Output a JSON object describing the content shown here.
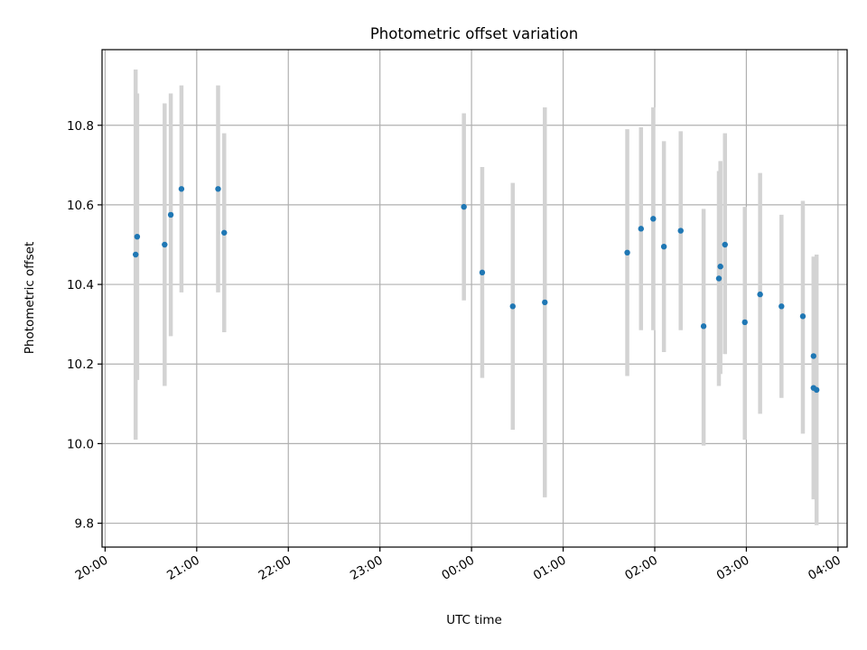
{
  "chart_data": {
    "type": "scatter",
    "title": "Photometric offset variation",
    "xlabel": "UTC time",
    "ylabel": "Photometric offset",
    "x_ticks": [
      "20:00",
      "21:00",
      "22:00",
      "23:00",
      "00:00",
      "01:00",
      "02:00",
      "03:00",
      "04:00"
    ],
    "y_ticks": [
      "9.8",
      "10.0",
      "10.2",
      "10.4",
      "10.6",
      "10.8"
    ],
    "xlim": [
      "19:58",
      "04:06"
    ],
    "ylim": [
      9.74,
      10.99
    ],
    "grid": true,
    "colors": {
      "points": "#1f77b4",
      "errorbars": "#d3d3d3",
      "grid": "#b0b0b0"
    },
    "series": [
      {
        "values": [
          {
            "x": "20:20",
            "y": 10.475,
            "y_lower": 10.01,
            "y_upper": 10.94
          },
          {
            "x": "20:21",
            "y": 10.52,
            "y_lower": 10.16,
            "y_upper": 10.88
          },
          {
            "x": "20:39",
            "y": 10.5,
            "y_lower": 10.145,
            "y_upper": 10.855
          },
          {
            "x": "20:43",
            "y": 10.575,
            "y_lower": 10.27,
            "y_upper": 10.88
          },
          {
            "x": "20:50",
            "y": 10.64,
            "y_lower": 10.38,
            "y_upper": 10.9
          },
          {
            "x": "21:14",
            "y": 10.64,
            "y_lower": 10.38,
            "y_upper": 10.9
          },
          {
            "x": "21:18",
            "y": 10.53,
            "y_lower": 10.28,
            "y_upper": 10.78
          },
          {
            "x": "23:55",
            "y": 10.595,
            "y_lower": 10.36,
            "y_upper": 10.83
          },
          {
            "x": "00:07",
            "y": 10.43,
            "y_lower": 10.165,
            "y_upper": 10.695
          },
          {
            "x": "00:27",
            "y": 10.345,
            "y_lower": 10.035,
            "y_upper": 10.655
          },
          {
            "x": "00:48",
            "y": 10.355,
            "y_lower": 9.865,
            "y_upper": 10.845
          },
          {
            "x": "01:42",
            "y": 10.48,
            "y_lower": 10.17,
            "y_upper": 10.79
          },
          {
            "x": "01:51",
            "y": 10.54,
            "y_lower": 10.285,
            "y_upper": 10.795
          },
          {
            "x": "01:59",
            "y": 10.565,
            "y_lower": 10.285,
            "y_upper": 10.845
          },
          {
            "x": "02:06",
            "y": 10.495,
            "y_lower": 10.23,
            "y_upper": 10.76
          },
          {
            "x": "02:17",
            "y": 10.535,
            "y_lower": 10.285,
            "y_upper": 10.785
          },
          {
            "x": "02:32",
            "y": 10.295,
            "y_lower": 9.995,
            "y_upper": 10.59
          },
          {
            "x": "02:42",
            "y": 10.415,
            "y_lower": 10.145,
            "y_upper": 10.685
          },
          {
            "x": "02:43",
            "y": 10.445,
            "y_lower": 10.175,
            "y_upper": 10.71
          },
          {
            "x": "02:46",
            "y": 10.5,
            "y_lower": 10.225,
            "y_upper": 10.78
          },
          {
            "x": "02:59",
            "y": 10.305,
            "y_lower": 10.01,
            "y_upper": 10.595
          },
          {
            "x": "03:09",
            "y": 10.375,
            "y_lower": 10.075,
            "y_upper": 10.68
          },
          {
            "x": "03:23",
            "y": 10.345,
            "y_lower": 10.115,
            "y_upper": 10.575
          },
          {
            "x": "03:37",
            "y": 10.32,
            "y_lower": 10.025,
            "y_upper": 10.61
          },
          {
            "x": "03:44",
            "y": 10.22,
            "y_lower": 9.97,
            "y_upper": 10.47
          },
          {
            "x": "03:44",
            "y": 10.14,
            "y_lower": 9.86,
            "y_upper": 10.45
          },
          {
            "x": "03:46",
            "y": 10.135,
            "y_lower": 9.795,
            "y_upper": 10.475
          }
        ]
      }
    ]
  }
}
